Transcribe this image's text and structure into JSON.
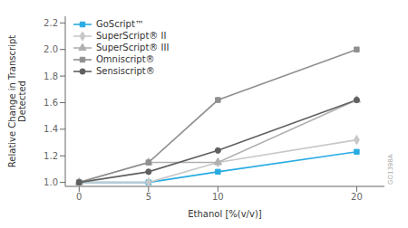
{
  "chart_data": {
    "type": "line",
    "x": [
      0,
      5,
      10,
      20
    ],
    "series": [
      {
        "name": "GoScript™",
        "color": "#29ABE2",
        "marker": "square",
        "values": [
          1.0,
          1.0,
          1.08,
          1.23
        ]
      },
      {
        "name": "SuperScript® II",
        "color": "#C8C8C8",
        "marker": "diamond",
        "values": [
          1.0,
          1.0,
          1.15,
          1.32
        ]
      },
      {
        "name": "SuperScript® III",
        "color": "#B0B0B0",
        "marker": "triangle",
        "values": [
          1.0,
          1.15,
          1.15,
          1.62
        ]
      },
      {
        "name": "Omniscript®",
        "color": "#909090",
        "marker": "square",
        "values": [
          1.0,
          1.15,
          1.62,
          2.0
        ]
      },
      {
        "name": "Sensiscript®",
        "color": "#606060",
        "marker": "circle",
        "values": [
          1.0,
          1.08,
          1.24,
          1.62
        ]
      }
    ],
    "x_label": "Ethanol [%(v/v)]",
    "y_label": "Relative Change in Transcript\nDetected",
    "xlim": [
      -1,
      22
    ],
    "ylim": [
      0.97,
      2.25
    ],
    "xticks": [
      0,
      5,
      10,
      20
    ],
    "yticks": [
      {
        "value": 1.0,
        "label": "1.0"
      },
      1.2,
      1.4,
      1.6,
      1.8,
      {
        "value": 2.0,
        "label": "2.0"
      },
      2.2
    ],
    "legend": "upper left",
    "grid": false,
    "annotations": [
      "GO1398A"
    ]
  }
}
